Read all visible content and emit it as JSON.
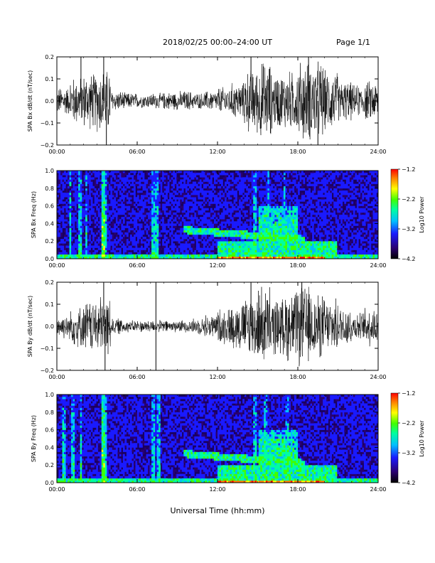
{
  "header": {
    "title": "2018/02/25  00:00–24:00 UT",
    "page": "Page 1/1"
  },
  "x_axis_label": "Universal Time (hh:mm)",
  "colors": {
    "background": "#ffffff",
    "waveform": "#000000",
    "colormap": [
      "#000000",
      "#2a0070",
      "#1a1aff",
      "#00bfff",
      "#00ffa0",
      "#40ff00",
      "#ffff00",
      "#ff8000",
      "#ff0000"
    ]
  },
  "chart_data": [
    {
      "type": "line",
      "ylabel": "SPA Bx dB/dt (nT/sec)",
      "xlim": [
        0,
        24
      ],
      "ylim": [
        -0.2,
        0.2
      ],
      "x_ticks": [
        "00:00",
        "06:00",
        "12:00",
        "18:00",
        "24:00"
      ],
      "y_ticks": [
        "−0.2",
        "−0.1",
        "0.0",
        "0.1",
        "0.2"
      ],
      "x_tick_values": [
        0,
        6,
        12,
        18,
        24
      ],
      "y_tick_values": [
        -0.2,
        -0.1,
        0,
        0.1,
        0.2
      ],
      "series": [
        {
          "values_amplitude_envelope_per_hour": [
            0.07,
            0.12,
            0.14,
            0.16,
            0.05,
            0.04,
            0.035,
            0.04,
            0.045,
            0.05,
            0.04,
            0.05,
            0.07,
            0.09,
            0.16,
            0.2,
            0.14,
            0.15,
            0.2,
            0.2,
            0.15,
            0.1,
            0.08,
            0.1
          ],
          "spikes": [
            [
              1.8,
              0.2
            ],
            [
              3.5,
              0.2
            ],
            [
              3.7,
              -0.2
            ],
            [
              14.5,
              0.2
            ],
            [
              18.8,
              0.2
            ],
            [
              19.5,
              -0.2
            ]
          ]
        }
      ]
    },
    {
      "type": "heatmap",
      "ylabel": "SPA Bx Freq (Hz)",
      "colorbar_label": "Log10 Power",
      "colorbar_ticks": [
        "−1.2",
        "−2.2",
        "−3.2",
        "−4.2"
      ],
      "colorbar_range": [
        -4.2,
        -1.2
      ],
      "xlim": [
        0,
        24
      ],
      "ylim": [
        0,
        1.0
      ],
      "x_ticks": [
        "00:00",
        "06:00",
        "12:00",
        "18:00",
        "24:00"
      ],
      "y_ticks": [
        "0.0",
        "0.2",
        "0.4",
        "0.6",
        "0.8",
        "1.0"
      ],
      "y_tick_values": [
        0,
        0.2,
        0.4,
        0.6,
        0.8,
        1.0
      ],
      "features": {
        "vertical_bursts_hours": [
          1.0,
          1.7,
          2.2,
          3.4,
          3.6,
          7.2,
          7.5,
          14.8,
          15.8,
          17.0
        ],
        "banded_emission": {
          "start": 9.5,
          "end": 18.5,
          "freq_start": 0.33,
          "freq_end": 0.22
        },
        "broadband_patch": {
          "start": 15.0,
          "end": 18.0,
          "freq_low": 0.2,
          "freq_high": 0.6
        }
      }
    },
    {
      "type": "line",
      "ylabel": "SPA By dB/dt (nT/sec)",
      "xlim": [
        0,
        24
      ],
      "ylim": [
        -0.2,
        0.2
      ],
      "x_ticks": [
        "00:00",
        "06:00",
        "12:00",
        "18:00",
        "24:00"
      ],
      "y_ticks": [
        "−0.2",
        "−0.1",
        "0.0",
        "0.1",
        "0.2"
      ],
      "x_tick_values": [
        0,
        6,
        12,
        18,
        24
      ],
      "y_tick_values": [
        -0.2,
        -0.1,
        0,
        0.1,
        0.2
      ],
      "series": [
        {
          "values_amplitude_envelope_per_hour": [
            0.06,
            0.1,
            0.13,
            0.15,
            0.04,
            0.03,
            0.03,
            0.03,
            0.03,
            0.03,
            0.04,
            0.06,
            0.09,
            0.12,
            0.16,
            0.2,
            0.14,
            0.18,
            0.2,
            0.16,
            0.13,
            0.1,
            0.07,
            0.1
          ],
          "spikes": [
            [
              3.5,
              0.2
            ],
            [
              3.6,
              -0.2
            ],
            [
              7.4,
              0.2
            ],
            [
              7.4,
              -0.2
            ],
            [
              14.5,
              0.2
            ],
            [
              18.3,
              0.2
            ]
          ]
        }
      ]
    },
    {
      "type": "heatmap",
      "ylabel": "SPA By Freq (Hz)",
      "colorbar_label": "Log10 Power",
      "colorbar_ticks": [
        "−1.2",
        "−2.2",
        "−3.2",
        "−4.2"
      ],
      "colorbar_range": [
        -4.2,
        -1.2
      ],
      "xlim": [
        0,
        24
      ],
      "ylim": [
        0,
        1.0
      ],
      "x_ticks": [
        "00:00",
        "06:00",
        "12:00",
        "18:00",
        "24:00"
      ],
      "y_ticks": [
        "0.0",
        "0.2",
        "0.4",
        "0.6",
        "0.8",
        "1.0"
      ],
      "y_tick_values": [
        0,
        0.2,
        0.4,
        0.6,
        0.8,
        1.0
      ],
      "features": {
        "vertical_bursts_hours": [
          0.5,
          1.2,
          1.8,
          3.4,
          3.6,
          7.2,
          7.6,
          14.8,
          15.6,
          17.2
        ],
        "banded_emission": {
          "start": 9.5,
          "end": 18.5,
          "freq_start": 0.33,
          "freq_end": 0.22
        },
        "broadband_patch": {
          "start": 15.0,
          "end": 18.0,
          "freq_low": 0.2,
          "freq_high": 0.6
        }
      }
    }
  ]
}
